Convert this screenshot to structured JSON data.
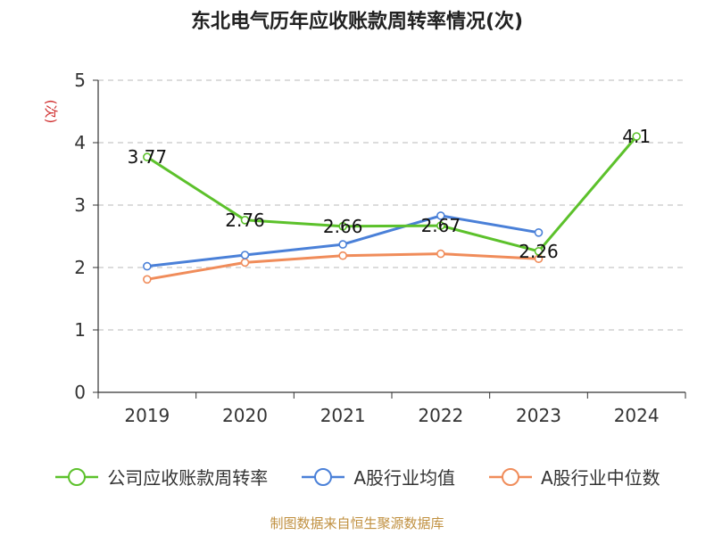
{
  "chart_data": {
    "type": "line",
    "title": "东北电气历年应收账款周转率情况(次)",
    "ylabel": "(次)",
    "categories": [
      "2019",
      "2020",
      "2021",
      "2022",
      "2023",
      "2024"
    ],
    "ylim": [
      0,
      5
    ],
    "yticks": [
      "0",
      "1",
      "2",
      "3",
      "4",
      "5"
    ],
    "grid": true,
    "legend_position": "bottom",
    "series": [
      {
        "name": "公司应收账款周转率",
        "color": "#5cc12b",
        "values": [
          3.77,
          2.76,
          2.66,
          2.67,
          2.26,
          4.1
        ],
        "labels": [
          "3.77",
          "2.76",
          "2.66",
          "2.67",
          "2.26",
          "4.1"
        ]
      },
      {
        "name": "A股行业均值",
        "color": "#4a80d8",
        "values": [
          2.02,
          2.2,
          2.37,
          2.83,
          2.56,
          null
        ]
      },
      {
        "name": "A股行业中位数",
        "color": "#f08c5a",
        "values": [
          1.81,
          2.08,
          2.19,
          2.22,
          2.14,
          null
        ]
      }
    ]
  },
  "source": "制图数据来自恒生聚源数据库"
}
